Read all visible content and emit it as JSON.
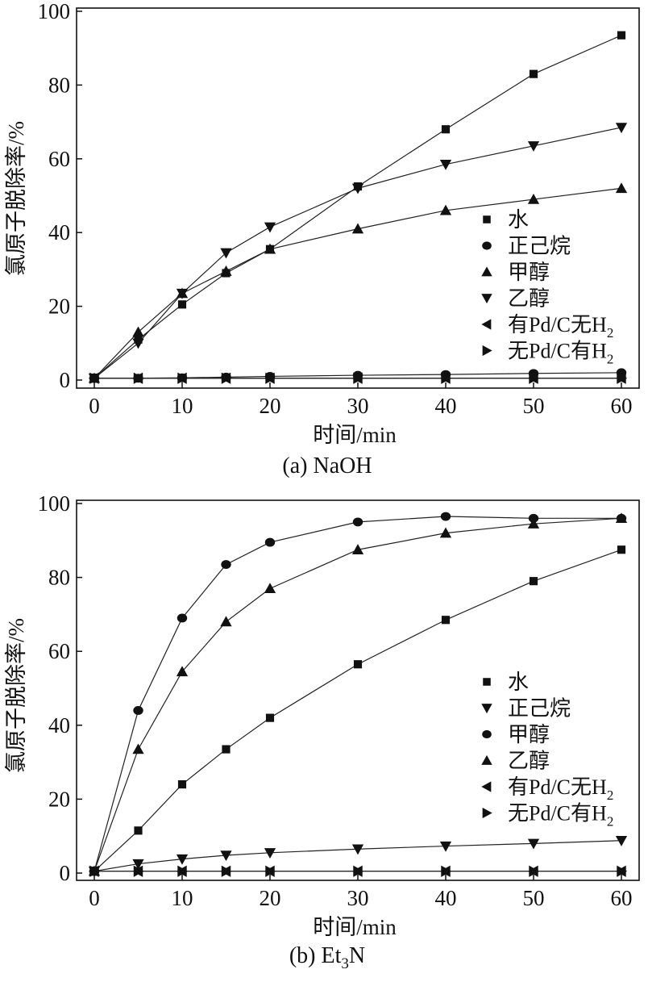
{
  "figure": {
    "ylabel": "氯原子脱除率/%",
    "xlabel": "时间/min"
  },
  "chart_data": [
    {
      "type": "line",
      "caption": "(a) NaOH",
      "xlabel": "时间/min",
      "ylabel": "氯原子脱除率/%",
      "xlim": [
        0,
        60
      ],
      "ylim": [
        0,
        100
      ],
      "xticks": [
        "0",
        "10",
        "20",
        "30",
        "40",
        "50",
        "60"
      ],
      "yticks": [
        "0",
        "20",
        "40",
        "60",
        "80",
        "100"
      ],
      "legend_position": "right-middle",
      "series": [
        {
          "name": "水",
          "marker": "square",
          "x": [
            0,
            5,
            10,
            15,
            20,
            30,
            40,
            50,
            60
          ],
          "y": [
            0.5,
            11,
            20.5,
            29,
            35.5,
            52.5,
            68,
            83,
            93.5
          ]
        },
        {
          "name": "正己烷",
          "marker": "circle",
          "x": [
            0,
            5,
            10,
            15,
            20,
            30,
            40,
            50,
            60
          ],
          "y": [
            0.5,
            0.5,
            0.6,
            0.8,
            1.0,
            1.3,
            1.5,
            1.8,
            2.0
          ]
        },
        {
          "name": "甲醇",
          "marker": "triangle-up",
          "x": [
            0,
            5,
            10,
            15,
            20,
            30,
            40,
            50,
            60
          ],
          "y": [
            0.5,
            13,
            23.5,
            29.5,
            35.5,
            41,
            46,
            49,
            52
          ]
        },
        {
          "name": "乙醇",
          "marker": "triangle-down",
          "x": [
            0,
            5,
            10,
            15,
            20,
            30,
            40,
            50,
            60
          ],
          "y": [
            0.5,
            10,
            23.5,
            34.5,
            41.5,
            52,
            58.5,
            63.5,
            68.5
          ]
        },
        {
          "name": "有Pd/C无H",
          "sub": "2",
          "marker": "triangle-left",
          "x": [
            0,
            5,
            10,
            15,
            20,
            30,
            40,
            50,
            60
          ],
          "y": [
            0.5,
            0.5,
            0.5,
            0.5,
            0.5,
            0.5,
            0.5,
            0.5,
            0.5
          ]
        },
        {
          "name": "无Pd/C有H",
          "sub": "2",
          "marker": "triangle-right",
          "x": [
            0,
            5,
            10,
            15,
            20,
            30,
            40,
            50,
            60
          ],
          "y": [
            0.5,
            0.5,
            0.5,
            0.5,
            0.5,
            0.5,
            0.5,
            0.5,
            0.5
          ]
        }
      ]
    },
    {
      "type": "line",
      "caption": "(b) Et",
      "caption_sub": "3",
      "caption_tail": "N",
      "xlabel": "时间/min",
      "ylabel": "氯原子脱除率/%",
      "xlim": [
        0,
        60
      ],
      "ylim": [
        0,
        100
      ],
      "xticks": [
        "0",
        "10",
        "20",
        "30",
        "40",
        "50",
        "60"
      ],
      "yticks": [
        "0",
        "20",
        "40",
        "60",
        "80",
        "100"
      ],
      "legend_position": "right-middle",
      "series": [
        {
          "name": "水",
          "marker": "square",
          "x": [
            0,
            5,
            10,
            15,
            20,
            30,
            40,
            50,
            60
          ],
          "y": [
            0.5,
            11.5,
            24,
            33.5,
            42,
            56.5,
            68.5,
            79,
            87.5
          ]
        },
        {
          "name": "正己烷",
          "marker": "triangle-down",
          "x": [
            0,
            5,
            10,
            15,
            20,
            30,
            40,
            50,
            60
          ],
          "y": [
            0.5,
            2.5,
            3.8,
            4.8,
            5.5,
            6.5,
            7.3,
            8.0,
            8.8
          ]
        },
        {
          "name": "甲醇",
          "marker": "circle",
          "x": [
            0,
            5,
            10,
            15,
            20,
            30,
            40,
            50,
            60
          ],
          "y": [
            0.5,
            44,
            69,
            83.5,
            89.5,
            95,
            96.5,
            96,
            96
          ]
        },
        {
          "name": "乙醇",
          "marker": "triangle-up",
          "x": [
            0,
            5,
            10,
            15,
            20,
            30,
            40,
            50,
            60
          ],
          "y": [
            0.5,
            33.5,
            54.5,
            68,
            77,
            87.5,
            92,
            94.5,
            96
          ]
        },
        {
          "name": "有Pd/C无H",
          "sub": "2",
          "marker": "triangle-left",
          "x": [
            0,
            5,
            10,
            15,
            20,
            30,
            40,
            50,
            60
          ],
          "y": [
            0.5,
            0.5,
            0.5,
            0.5,
            0.5,
            0.5,
            0.5,
            0.5,
            0.5
          ]
        },
        {
          "name": "无Pd/C有H",
          "sub": "2",
          "marker": "triangle-right",
          "x": [
            0,
            5,
            10,
            15,
            20,
            30,
            40,
            50,
            60
          ],
          "y": [
            0.5,
            0.5,
            0.5,
            0.5,
            0.5,
            0.5,
            0.5,
            0.5,
            0.5
          ]
        }
      ]
    }
  ]
}
